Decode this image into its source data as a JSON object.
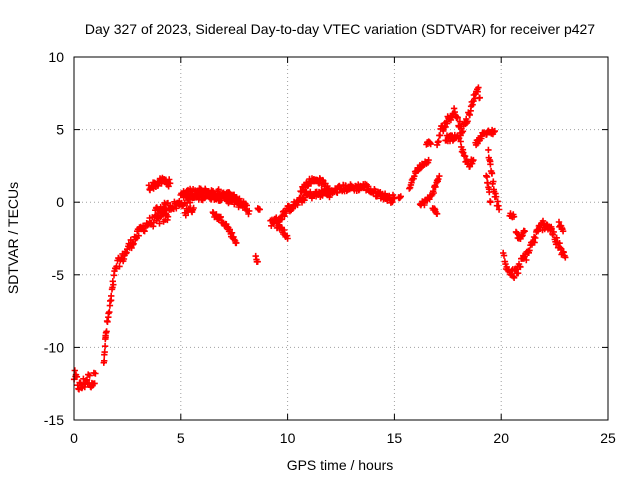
{
  "chart_data": {
    "type": "scatter",
    "title": "Day 327 of 2023, Sidereal Day-to-day VTEC variation (SDTVAR) for receiver p427",
    "xlabel": "GPS time / hours",
    "ylabel": "SDTVAR / TECUs",
    "xlim": [
      0,
      25
    ],
    "ylim": [
      -15,
      10
    ],
    "xticks": [
      0,
      5,
      10,
      15,
      20,
      25
    ],
    "yticks": [
      -15,
      -10,
      -5,
      0,
      5,
      10
    ],
    "xtick_labels": [
      "0",
      "5",
      "10",
      "15",
      "20",
      "25"
    ],
    "ytick_labels": [
      "-15",
      "-10",
      "-5",
      "0",
      "5",
      "10"
    ],
    "grid": true,
    "marker": "+",
    "color": "#ff0000",
    "series": [
      {
        "name": "SDTVAR",
        "segments": [
          {
            "band": 1.0,
            "points": [
              [
                0.0,
                -12.0
              ],
              [
                0.3,
                -12.8
              ],
              [
                0.6,
                -12.2
              ],
              [
                0.9,
                -12.4
              ],
              [
                1.0,
                -11.8
              ]
            ]
          },
          {
            "band": 0.7,
            "points": [
              [
                1.4,
                -10.8
              ],
              [
                1.5,
                -9.0
              ],
              [
                1.6,
                -8.0
              ],
              [
                1.7,
                -7.0
              ],
              [
                1.8,
                -6.0
              ],
              [
                1.9,
                -5.0
              ],
              [
                2.0,
                -4.3
              ],
              [
                2.3,
                -3.8
              ],
              [
                2.6,
                -3.0
              ],
              [
                2.9,
                -2.4
              ],
              [
                3.2,
                -1.8
              ],
              [
                3.5,
                -1.4
              ],
              [
                3.8,
                -1.3
              ],
              [
                4.1,
                -1.1
              ],
              [
                4.4,
                -1.0
              ]
            ]
          },
          {
            "band": 0.5,
            "points": [
              [
                3.5,
                1.0
              ],
              [
                3.9,
                1.3
              ],
              [
                4.2,
                1.5
              ],
              [
                4.5,
                1.3
              ]
            ]
          },
          {
            "band": 0.6,
            "points": [
              [
                3.8,
                -0.6
              ],
              [
                4.3,
                -0.3
              ],
              [
                4.8,
                -0.2
              ],
              [
                5.3,
                0.2
              ],
              [
                5.8,
                0.4
              ],
              [
                6.3,
                0.5
              ],
              [
                6.8,
                0.4
              ],
              [
                7.3,
                0.2
              ],
              [
                7.8,
                -0.1
              ]
            ]
          },
          {
            "band": 0.6,
            "points": [
              [
                5.0,
                0.7
              ],
              [
                5.5,
                0.6
              ],
              [
                6.0,
                0.7
              ],
              [
                6.5,
                0.6
              ],
              [
                7.0,
                0.6
              ],
              [
                7.5,
                0.3
              ],
              [
                8.0,
                -0.3
              ],
              [
                8.2,
                -0.6
              ]
            ]
          },
          {
            "band": 0.4,
            "points": [
              [
                6.5,
                -0.8
              ],
              [
                7.0,
                -1.3
              ],
              [
                7.3,
                -2.0
              ],
              [
                7.6,
                -2.8
              ]
            ]
          },
          {
            "band": 0.5,
            "points": [
              [
                5.2,
                -0.7
              ],
              [
                5.6,
                -0.4
              ]
            ]
          },
          {
            "band": 0.3,
            "points": [
              [
                8.5,
                -3.8
              ],
              [
                8.6,
                -4.1
              ]
            ]
          },
          {
            "band": 0.4,
            "points": [
              [
                8.6,
                -0.6
              ],
              [
                8.7,
                -0.5
              ]
            ]
          },
          {
            "band": 0.5,
            "points": [
              [
                9.2,
                -1.4
              ],
              [
                9.6,
                -1.2
              ],
              [
                10.0,
                -0.5
              ],
              [
                10.3,
                -0.2
              ],
              [
                10.6,
                0.1
              ],
              [
                10.9,
                0.5
              ],
              [
                11.2,
                0.5
              ],
              [
                11.6,
                0.6
              ],
              [
                12.0,
                0.6
              ],
              [
                12.4,
                0.9
              ],
              [
                12.8,
                1.0
              ],
              [
                13.2,
                1.0
              ],
              [
                13.6,
                1.1
              ],
              [
                14.0,
                0.7
              ],
              [
                14.4,
                0.5
              ],
              [
                14.8,
                0.2
              ],
              [
                15.0,
                0.3
              ]
            ]
          },
          {
            "band": 0.4,
            "points": [
              [
                9.5,
                -1.6
              ],
              [
                9.8,
                -2.0
              ],
              [
                10.0,
                -2.5
              ]
            ]
          },
          {
            "band": 0.4,
            "points": [
              [
                10.6,
                0.8
              ],
              [
                11.0,
                1.4
              ],
              [
                11.3,
                1.6
              ],
              [
                11.7,
                1.3
              ],
              [
                12.0,
                0.6
              ]
            ]
          },
          {
            "band": 0.3,
            "points": [
              [
                15.2,
                0.2
              ],
              [
                15.3,
                0.4
              ]
            ]
          },
          {
            "band": 0.3,
            "points": [
              [
                15.7,
                1.0
              ],
              [
                16.0,
                2.1
              ],
              [
                16.3,
                2.6
              ],
              [
                16.6,
                2.9
              ]
            ]
          },
          {
            "band": 0.4,
            "points": [
              [
                16.2,
                -0.2
              ],
              [
                16.6,
                0.2
              ],
              [
                16.9,
                1.0
              ],
              [
                17.1,
                1.8
              ]
            ]
          },
          {
            "band": 0.3,
            "points": [
              [
                16.8,
                -0.4
              ],
              [
                17.0,
                -0.8
              ]
            ]
          },
          {
            "band": 0.3,
            "points": [
              [
                16.5,
                4.1
              ],
              [
                16.7,
                4.0
              ]
            ]
          },
          {
            "band": 0.6,
            "points": [
              [
                17.0,
                4.0
              ],
              [
                17.2,
                5.0
              ],
              [
                17.4,
                5.4
              ],
              [
                17.6,
                5.9
              ],
              [
                17.8,
                6.3
              ],
              [
                18.0,
                5.5
              ],
              [
                18.2,
                5.0
              ],
              [
                18.4,
                5.7
              ],
              [
                18.6,
                6.5
              ],
              [
                18.8,
                7.6
              ],
              [
                18.9,
                7.9
              ],
              [
                19.0,
                7.2
              ]
            ]
          },
          {
            "band": 0.4,
            "points": [
              [
                17.4,
                4.4
              ],
              [
                17.8,
                4.4
              ],
              [
                18.1,
                4.6
              ]
            ]
          },
          {
            "band": 0.4,
            "points": [
              [
                18.1,
                4.0
              ],
              [
                18.3,
                3.0
              ],
              [
                18.5,
                2.6
              ],
              [
                18.7,
                2.9
              ]
            ]
          },
          {
            "band": 0.3,
            "points": [
              [
                18.8,
                4.0
              ],
              [
                19.0,
                4.4
              ],
              [
                19.2,
                4.8
              ]
            ]
          },
          {
            "band": 0.4,
            "points": [
              [
                19.3,
                4.7
              ],
              [
                19.5,
                4.8
              ],
              [
                19.7,
                4.9
              ]
            ]
          },
          {
            "band": 0.5,
            "points": [
              [
                19.4,
                3.5
              ],
              [
                19.5,
                2.5
              ],
              [
                19.6,
                1.5
              ],
              [
                19.7,
                0.6
              ],
              [
                19.8,
                0.0
              ],
              [
                19.9,
                -0.5
              ]
            ]
          },
          {
            "band": 0.4,
            "points": [
              [
                19.3,
                2.0
              ],
              [
                19.5,
                0.0
              ]
            ]
          },
          {
            "band": 0.3,
            "points": [
              [
                20.4,
                -0.8
              ],
              [
                20.6,
                -1.0
              ]
            ]
          },
          {
            "band": 0.7,
            "points": [
              [
                20.1,
                -3.6
              ],
              [
                20.2,
                -4.3
              ],
              [
                20.4,
                -4.8
              ],
              [
                20.6,
                -5.0
              ],
              [
                20.8,
                -4.6
              ],
              [
                21.0,
                -4.0
              ],
              [
                21.2,
                -3.6
              ],
              [
                21.4,
                -3.0
              ],
              [
                21.6,
                -2.4
              ],
              [
                21.8,
                -1.8
              ],
              [
                22.0,
                -1.5
              ],
              [
                22.2,
                -1.6
              ],
              [
                22.4,
                -2.0
              ],
              [
                22.6,
                -2.8
              ],
              [
                22.8,
                -3.3
              ],
              [
                23.0,
                -3.8
              ]
            ]
          },
          {
            "band": 0.4,
            "points": [
              [
                20.7,
                -2.2
              ],
              [
                20.9,
                -2.5
              ],
              [
                21.1,
                -2.0
              ]
            ]
          },
          {
            "band": 0.3,
            "points": [
              [
                22.7,
                -1.5
              ],
              [
                22.9,
                -2.0
              ]
            ]
          }
        ]
      }
    ]
  }
}
